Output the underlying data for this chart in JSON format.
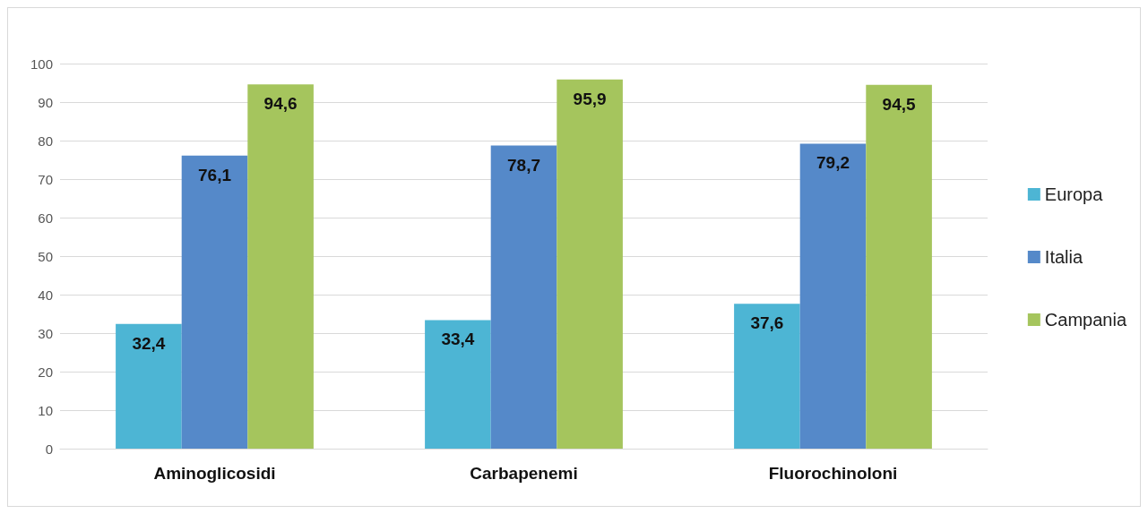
{
  "chart_data": {
    "type": "bar",
    "categories": [
      "Aminoglicosidi",
      "Carbapenemi",
      "Fluorochinoloni"
    ],
    "series": [
      {
        "name": "Europa",
        "color": "#4db5d4",
        "values": [
          32.4,
          33.4,
          37.6
        ],
        "value_labels": [
          "32,4",
          "33,4",
          "37,6"
        ]
      },
      {
        "name": "Italia",
        "color": "#5589c9",
        "values": [
          76.1,
          78.7,
          79.2
        ],
        "value_labels": [
          "76,1",
          "78,7",
          "79,2"
        ]
      },
      {
        "name": "Campania",
        "color": "#a5c55d",
        "values": [
          94.6,
          95.9,
          94.5
        ],
        "value_labels": [
          "94,6",
          "95,9",
          "94,5"
        ]
      }
    ],
    "ylim": [
      0,
      100
    ],
    "yticks": [
      0,
      10,
      20,
      30,
      40,
      50,
      60,
      70,
      80,
      90,
      100
    ],
    "grid": "y",
    "legend": "right"
  }
}
